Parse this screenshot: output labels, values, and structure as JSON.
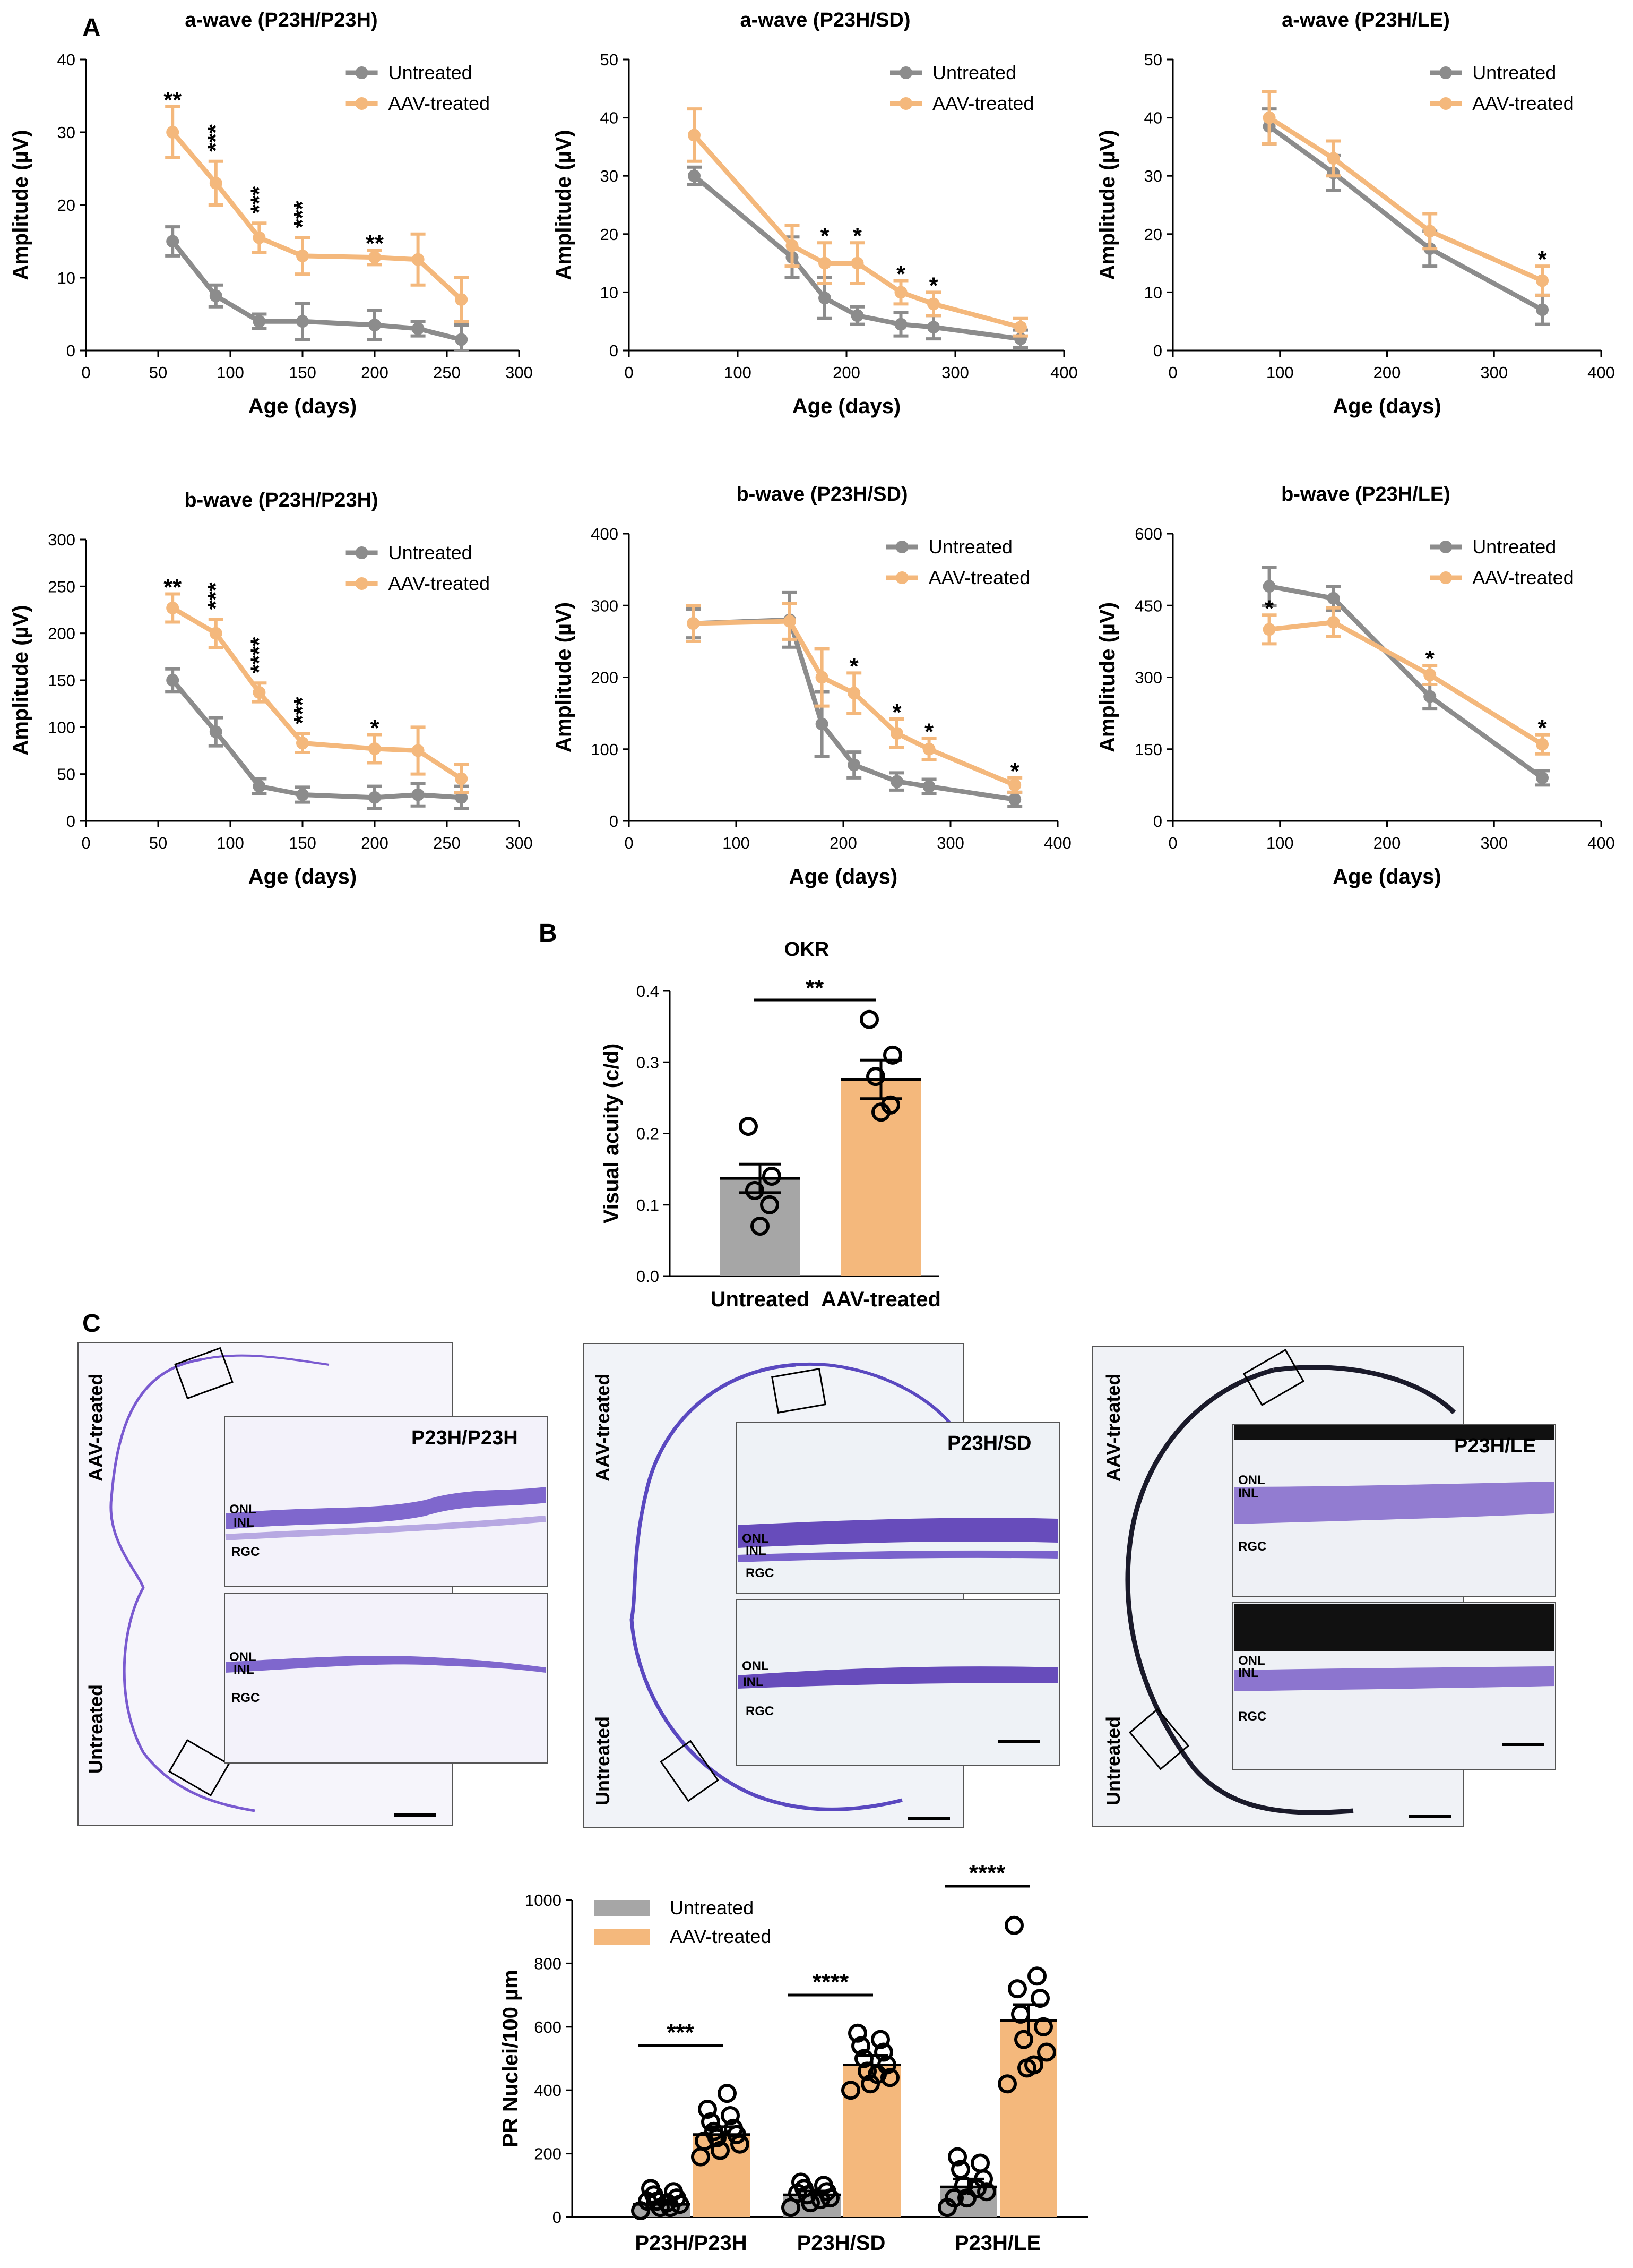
{
  "panel_labels": {
    "a": "A",
    "b": "B",
    "c": "C"
  },
  "colors": {
    "untreated": "#8c8c8c",
    "treated": "#f4b87c",
    "untreated_bar": "#a6a6a6",
    "treated_bar": "#f4b87c",
    "stain": "#6a4fc4"
  },
  "legend": {
    "untreated": "Untreated",
    "treated": "AAV-treated"
  },
  "chart_data": [
    {
      "id": "a1",
      "type": "line",
      "title": "a-wave (P23H/P23H)",
      "xlabel": "Age (days)",
      "ylabel": "Amplitude (µV)",
      "xlim": [
        0,
        300
      ],
      "ylim": [
        0,
        40
      ],
      "xticks": [
        0,
        50,
        100,
        150,
        200,
        250,
        300
      ],
      "yticks": [
        0,
        10,
        20,
        30,
        40
      ],
      "series": [
        {
          "name": "Untreated",
          "x": [
            60,
            90,
            120,
            150,
            200,
            230,
            260
          ],
          "y": [
            15,
            7.5,
            4,
            4,
            3.5,
            3,
            1.5
          ],
          "err": [
            2,
            1.5,
            1,
            2.5,
            2,
            1,
            2
          ]
        },
        {
          "name": "AAV-treated",
          "x": [
            60,
            90,
            120,
            150,
            200,
            230,
            260
          ],
          "y": [
            30,
            23,
            15.5,
            13,
            12.8,
            12.5,
            7
          ],
          "err": [
            3.5,
            3,
            2,
            2.5,
            1,
            3.5,
            3
          ]
        }
      ],
      "annotations": [
        {
          "x": 60,
          "text": "**"
        },
        {
          "x": 90,
          "text": "***"
        },
        {
          "x": 120,
          "text": "***"
        },
        {
          "x": 150,
          "text": "***"
        },
        {
          "x": 200,
          "text": "**"
        }
      ]
    },
    {
      "id": "a2",
      "type": "line",
      "title": "a-wave (P23H/SD)",
      "xlabel": "Age (days)",
      "ylabel": "Amplitude (µV)",
      "xlim": [
        0,
        400
      ],
      "ylim": [
        0,
        50
      ],
      "xticks": [
        0,
        100,
        200,
        300,
        400
      ],
      "yticks": [
        0,
        10,
        20,
        30,
        40,
        50
      ],
      "series": [
        {
          "name": "Untreated",
          "x": [
            60,
            150,
            180,
            210,
            250,
            280,
            360
          ],
          "y": [
            30,
            16,
            9,
            6,
            4.5,
            4,
            2
          ],
          "err": [
            1.5,
            3.5,
            3.5,
            1.5,
            2,
            2,
            1.5
          ]
        },
        {
          "name": "AAV-treated",
          "x": [
            60,
            150,
            180,
            210,
            250,
            280,
            360
          ],
          "y": [
            37,
            18,
            15,
            15,
            10,
            8,
            4
          ],
          "err": [
            4.5,
            3.5,
            3.5,
            3.5,
            2,
            2,
            1.5
          ]
        }
      ],
      "annotations": [
        {
          "x": 180,
          "text": "*"
        },
        {
          "x": 210,
          "text": "*"
        },
        {
          "x": 250,
          "text": "*"
        },
        {
          "x": 280,
          "text": "*"
        }
      ]
    },
    {
      "id": "a3",
      "type": "line",
      "title": "a-wave (P23H/LE)",
      "xlabel": "Age (days)",
      "ylabel": "Amplitude (µV)",
      "xlim": [
        0,
        400
      ],
      "ylim": [
        0,
        50
      ],
      "xticks": [
        0,
        100,
        200,
        300,
        400
      ],
      "yticks": [
        0,
        10,
        20,
        30,
        40,
        50
      ],
      "series": [
        {
          "name": "Untreated",
          "x": [
            90,
            150,
            240,
            345
          ],
          "y": [
            38.5,
            30.5,
            17.5,
            7
          ],
          "err": [
            3,
            3,
            3,
            2.5
          ]
        },
        {
          "name": "AAV-treated",
          "x": [
            90,
            150,
            240,
            345
          ],
          "y": [
            40,
            33,
            20.5,
            12
          ],
          "err": [
            4.5,
            3,
            3,
            2.5
          ]
        }
      ],
      "annotations": [
        {
          "x": 345,
          "text": "*"
        }
      ]
    },
    {
      "id": "b1",
      "type": "line",
      "title": "b-wave (P23H/P23H)",
      "xlabel": "Age (days)",
      "ylabel": "Amplitude (µV)",
      "xlim": [
        0,
        300
      ],
      "ylim": [
        0,
        300
      ],
      "xticks": [
        0,
        50,
        100,
        150,
        200,
        250,
        300
      ],
      "yticks": [
        0,
        50,
        100,
        150,
        200,
        250,
        300
      ],
      "series": [
        {
          "name": "Untreated",
          "x": [
            60,
            90,
            120,
            150,
            200,
            230,
            260
          ],
          "y": [
            150,
            95,
            37,
            28,
            25,
            28,
            25
          ],
          "err": [
            12,
            15,
            8,
            8,
            12,
            12,
            12
          ]
        },
        {
          "name": "AAV-treated",
          "x": [
            60,
            90,
            120,
            150,
            200,
            230,
            260
          ],
          "y": [
            227,
            200,
            137,
            83,
            77,
            75,
            45
          ],
          "err": [
            15,
            15,
            10,
            10,
            15,
            25,
            15
          ]
        }
      ],
      "annotations": [
        {
          "x": 60,
          "text": "**"
        },
        {
          "x": 90,
          "text": "***"
        },
        {
          "x": 120,
          "text": "****"
        },
        {
          "x": 150,
          "text": "***"
        },
        {
          "x": 200,
          "text": "*"
        }
      ]
    },
    {
      "id": "b2",
      "type": "line",
      "title": "b-wave (P23H/SD)",
      "xlabel": "Age (days)",
      "ylabel": "Amplitude (µV)",
      "xlim": [
        0,
        400
      ],
      "ylim": [
        0,
        400
      ],
      "xticks": [
        0,
        100,
        200,
        300,
        400
      ],
      "yticks": [
        0,
        100,
        200,
        300,
        400
      ],
      "series": [
        {
          "name": "Untreated",
          "x": [
            60,
            150,
            180,
            210,
            250,
            280,
            360
          ],
          "y": [
            275,
            280,
            135,
            78,
            55,
            48,
            30
          ],
          "err": [
            20,
            38,
            45,
            18,
            12,
            10,
            10
          ]
        },
        {
          "name": "AAV-treated",
          "x": [
            60,
            150,
            180,
            210,
            250,
            280,
            360
          ],
          "y": [
            275,
            278,
            200,
            178,
            122,
            100,
            50
          ],
          "err": [
            25,
            25,
            40,
            28,
            20,
            15,
            10
          ]
        }
      ],
      "annotations": [
        {
          "x": 210,
          "text": "*"
        },
        {
          "x": 250,
          "text": "*"
        },
        {
          "x": 280,
          "text": "*"
        },
        {
          "x": 360,
          "text": "*"
        }
      ]
    },
    {
      "id": "b3",
      "type": "line",
      "title": "b-wave (P23H/LE)",
      "xlabel": "Age (days)",
      "ylabel": "Amplitude (µV)",
      "xlim": [
        0,
        400
      ],
      "ylim": [
        0,
        600
      ],
      "xticks": [
        0,
        100,
        200,
        300,
        400
      ],
      "yticks": [
        0,
        150,
        300,
        450,
        600
      ],
      "series": [
        {
          "name": "Untreated",
          "x": [
            90,
            150,
            240,
            345
          ],
          "y": [
            490,
            465,
            260,
            90
          ],
          "err": [
            40,
            25,
            25,
            15
          ]
        },
        {
          "name": "AAV-treated",
          "x": [
            90,
            150,
            240,
            345
          ],
          "y": [
            400,
            415,
            305,
            160
          ],
          "err": [
            30,
            30,
            20,
            20
          ]
        }
      ],
      "annotations": [
        {
          "x": 90,
          "text": "*"
        },
        {
          "x": 240,
          "text": "*"
        },
        {
          "x": 345,
          "text": "*"
        }
      ]
    },
    {
      "id": "okr",
      "type": "bar",
      "title": "OKR",
      "ylabel": "Visual acuity (c/d)",
      "ylim": [
        0,
        0.4
      ],
      "yticks": [
        "0.0",
        "0.1",
        "0.2",
        "0.3",
        "0.4"
      ],
      "categories": [
        "Untreated",
        "AAV-treated"
      ],
      "values": [
        0.137,
        0.276
      ],
      "err": [
        0.02,
        0.027
      ],
      "points": [
        [
          0.21,
          0.14,
          0.12,
          0.1,
          0.07
        ],
        [
          0.36,
          0.31,
          0.28,
          0.24,
          0.23
        ]
      ],
      "significance": "**"
    },
    {
      "id": "pr",
      "type": "bar",
      "ylabel": "PR Nuclei/100 µm",
      "ylim": [
        0,
        1000
      ],
      "yticks": [
        0,
        200,
        400,
        600,
        800,
        1000
      ],
      "categories": [
        "P23H/P23H",
        "P23H/SD",
        "P23H/LE"
      ],
      "series": [
        {
          "name": "Untreated",
          "values": [
            40,
            70,
            95
          ],
          "err": [
            8,
            12,
            25
          ]
        },
        {
          "name": "AAV-treated",
          "values": [
            260,
            480,
            620
          ],
          "err": [
            25,
            30,
            50
          ]
        }
      ],
      "points": [
        [
          [
            20,
            30,
            40,
            50,
            60,
            70,
            80,
            90,
            30,
            50,
            45
          ],
          [
            190,
            210,
            230,
            250,
            260,
            270,
            280,
            300,
            320,
            340,
            390,
            240
          ]
        ],
        [
          [
            30,
            45,
            60,
            70,
            80,
            90,
            100,
            110,
            55,
            75
          ],
          [
            400,
            420,
            440,
            460,
            480,
            500,
            520,
            540,
            560,
            580,
            450
          ]
        ],
        [
          [
            30,
            60,
            80,
            100,
            120,
            150,
            170,
            190,
            90,
            60
          ],
          [
            420,
            470,
            520,
            560,
            600,
            640,
            690,
            720,
            760,
            920,
            480
          ]
        ]
      ],
      "significance": [
        "***",
        "****",
        "****"
      ]
    }
  ],
  "micrographs": [
    {
      "title": "P23H/P23H",
      "labels_top": [
        "ONL",
        "INL",
        "RGC"
      ],
      "labels_bottom": [
        "ONL",
        "INL",
        "RGC"
      ],
      "side_top": "AAV-treated",
      "side_bottom": "Untreated"
    },
    {
      "title": "P23H/SD",
      "labels_top": [
        "ONL",
        "INL",
        "RGC"
      ],
      "labels_bottom": [
        "ONL",
        "INL",
        "RGC"
      ],
      "side_top": "AAV-treated",
      "side_bottom": "Untreated"
    },
    {
      "title": "P23H/LE",
      "labels_top": [
        "ONL",
        "INL",
        "RGC"
      ],
      "labels_bottom": [
        "ONL",
        "INL",
        "RGC"
      ],
      "side_top": "AAV-treated",
      "side_bottom": "Untreated"
    }
  ]
}
